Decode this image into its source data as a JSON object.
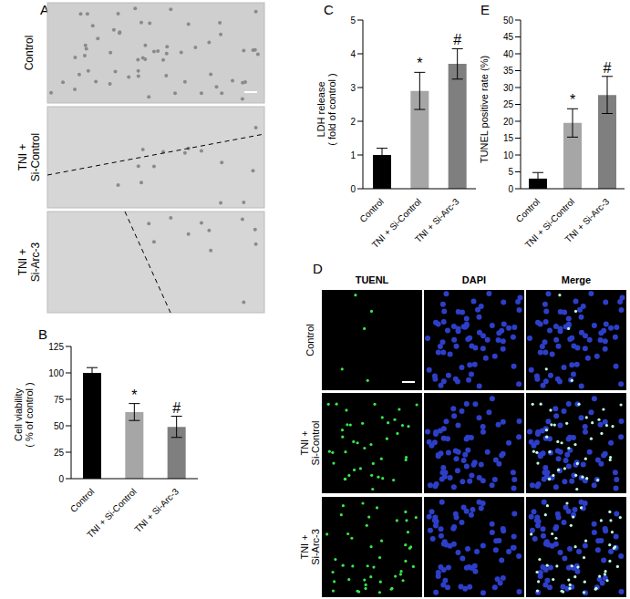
{
  "panel_a": {
    "panel_label": "A",
    "row_labels": [
      [
        "Control"
      ],
      [
        "TNI +",
        "Si-Control"
      ],
      [
        "TNI +",
        "Si-Arc-3"
      ]
    ]
  },
  "panel_d": {
    "panel_label": "D",
    "column_labels": [
      "TUENL",
      "DAPI",
      "Merge"
    ],
    "row_labels": [
      [
        "Control"
      ],
      [
        "TNI +",
        "Si-Control"
      ],
      [
        "TNI +",
        "Si-Arc-3"
      ]
    ]
  },
  "chart_data": [
    {
      "panel_label": "B",
      "type": "bar",
      "y_label": [
        "Cell viability",
        "( % of control )"
      ],
      "categories": [
        "Control",
        "TNI + Si-Control",
        "TNI + Si-Arc-3"
      ],
      "values": [
        100,
        63,
        49
      ],
      "errors": [
        5,
        8,
        10
      ],
      "significance": [
        null,
        "*",
        "#"
      ],
      "colors": [
        "#000000",
        "#a6a6a6",
        "#7f7f7f"
      ],
      "ylim": [
        0,
        125
      ],
      "yticks": [
        0,
        25,
        50,
        75,
        100,
        125
      ]
    },
    {
      "panel_label": "C",
      "type": "bar",
      "y_label": [
        "LDH release",
        "( fold of control )"
      ],
      "categories": [
        "Control",
        "TNI + Si-Control",
        "TNI + Si-Arc-3"
      ],
      "values": [
        1,
        2.9,
        3.7
      ],
      "errors": [
        0.2,
        0.55,
        0.45
      ],
      "significance": [
        null,
        "*",
        "#"
      ],
      "colors": [
        "#000000",
        "#a6a6a6",
        "#7f7f7f"
      ],
      "ylim": [
        0,
        5
      ],
      "yticks": [
        0,
        1,
        2,
        3,
        4,
        5
      ]
    },
    {
      "panel_label": "E",
      "type": "bar",
      "y_label": [
        "TUNEL positive rate  (%)"
      ],
      "categories": [
        "Control",
        "TNI + Si-Control",
        "TNI + Si-Arc-3"
      ],
      "values": [
        3,
        19.5,
        27.8
      ],
      "errors": [
        1.8,
        4.2,
        5.5
      ],
      "significance": [
        null,
        "*",
        "#"
      ],
      "colors": [
        "#000000",
        "#a6a6a6",
        "#7f7f7f"
      ],
      "ylim": [
        0,
        50
      ],
      "yticks": [
        0,
        5,
        10,
        15,
        20,
        25,
        30,
        35,
        40,
        45,
        50
      ]
    }
  ]
}
